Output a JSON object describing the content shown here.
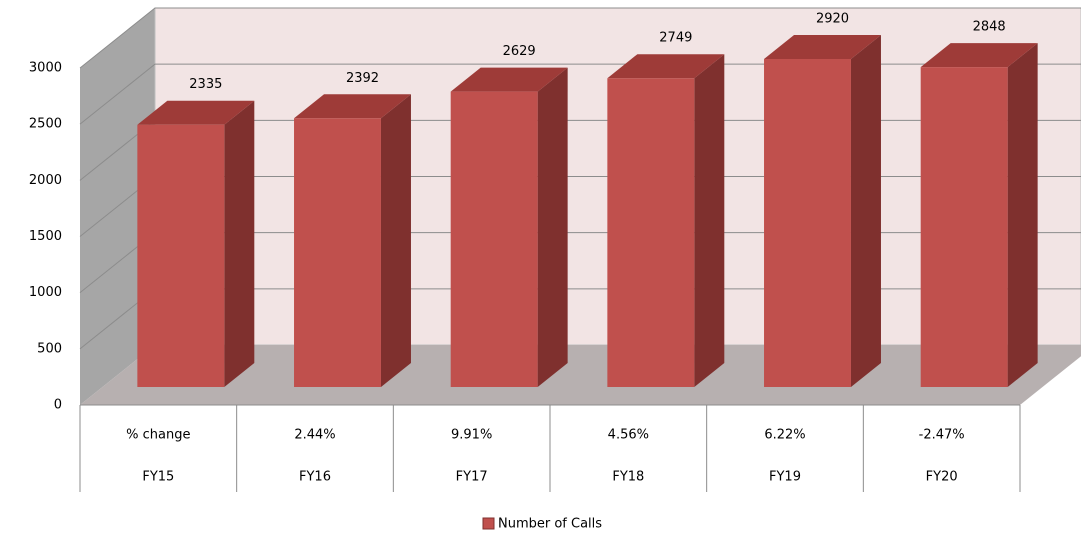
{
  "chart_data": {
    "type": "bar3d",
    "categories": [
      "FY15",
      "FY16",
      "FY17",
      "FY18",
      "FY19",
      "FY20"
    ],
    "change_labels": [
      "% change",
      "2.44%",
      "9.91%",
      "4.56%",
      "6.22%",
      "-2.47%"
    ],
    "series": [
      {
        "name": "Number of Calls",
        "color": "#c0504d",
        "values": [
          2335,
          2392,
          2629,
          2749,
          2920,
          2848
        ]
      }
    ],
    "ylim": [
      0,
      3000
    ],
    "yticks": [
      0,
      500,
      1000,
      1500,
      2000,
      2500,
      3000
    ],
    "grid": true,
    "legend": "bottom"
  }
}
